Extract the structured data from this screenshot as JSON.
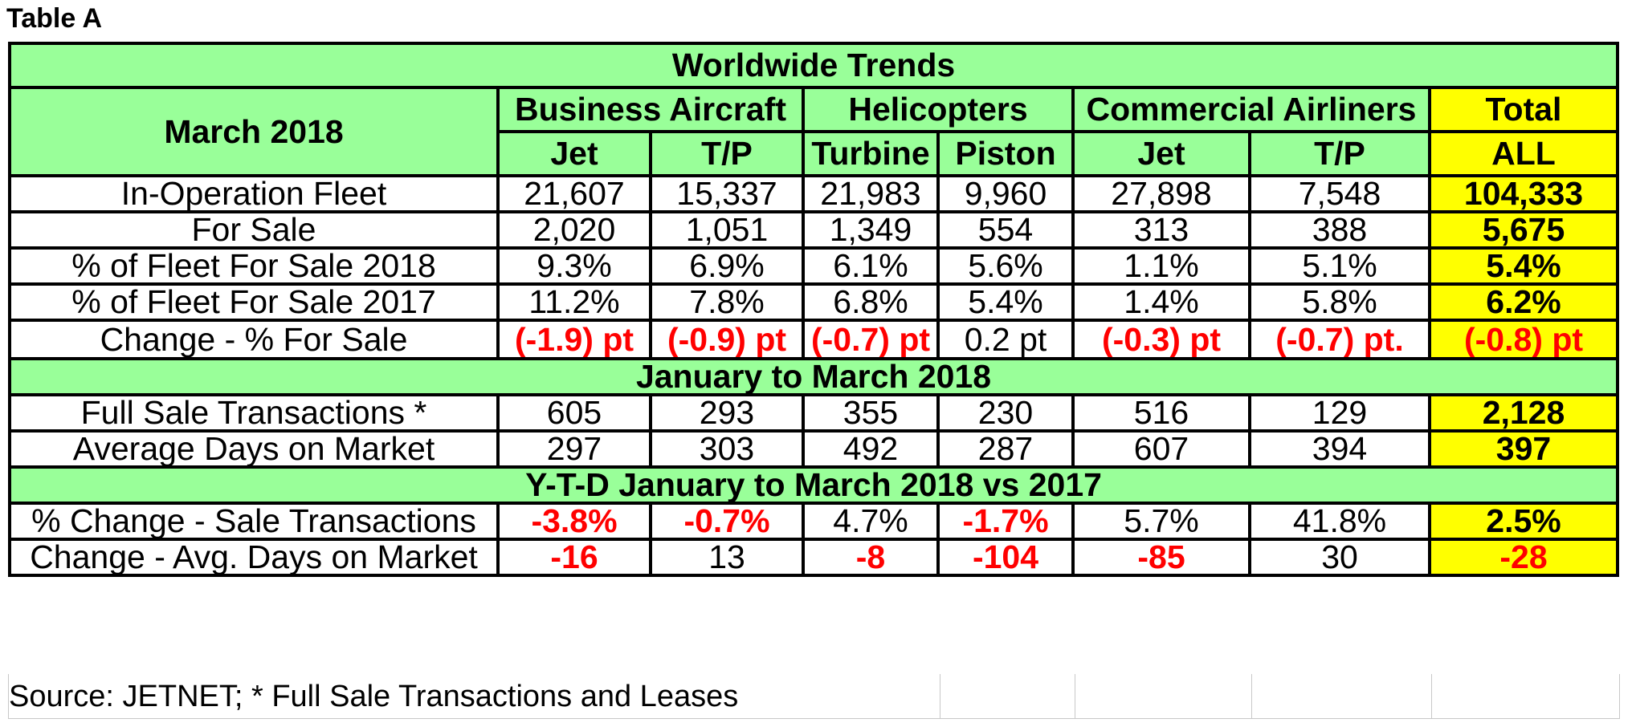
{
  "title": "Table A",
  "header": {
    "main": "Worldwide Trends",
    "period": "March 2018",
    "groups": [
      "Business Aircraft",
      "Helicopters",
      "Commercial Airliners",
      "Total"
    ],
    "subs": [
      "Jet",
      "T/P",
      "Turbine",
      "Piston",
      "Jet",
      "T/P",
      "ALL"
    ]
  },
  "sections": [
    {
      "rows": [
        {
          "label": "In-Operation Fleet",
          "values": [
            "21,607",
            "15,337",
            "21,983",
            "9,960",
            "27,898",
            "7,548"
          ],
          "total": "104,333"
        },
        {
          "label": "For Sale",
          "values": [
            "2,020",
            "1,051",
            "1,349",
            "554",
            "313",
            "388"
          ],
          "total": "5,675"
        },
        {
          "label": "% of Fleet For Sale 2018",
          "values": [
            "9.3%",
            "6.9%",
            "6.1%",
            "5.6%",
            "1.1%",
            "5.1%"
          ],
          "total": "5.4%"
        },
        {
          "label": "% of Fleet For Sale 2017",
          "values": [
            "11.2%",
            "7.8%",
            "6.8%",
            "5.4%",
            "1.4%",
            "5.8%"
          ],
          "total": "6.2%"
        },
        {
          "label": "Change - % For Sale",
          "values": [
            "(-1.9) pt",
            "(-0.9) pt",
            "(-0.7) pt",
            "0.2 pt",
            "(-0.3) pt",
            "(-0.7) pt."
          ],
          "total": "(-0.8) pt",
          "negative": [
            true,
            true,
            true,
            false,
            true,
            true
          ],
          "total_negative": true
        }
      ]
    },
    {
      "heading": "January to March 2018",
      "rows": [
        {
          "label": "Full Sale Transactions *",
          "values": [
            "605",
            "293",
            "355",
            "230",
            "516",
            "129"
          ],
          "total": "2,128"
        },
        {
          "label": "Average Days on Market",
          "values": [
            "297",
            "303",
            "492",
            "287",
            "607",
            "394"
          ],
          "total": "397"
        }
      ]
    },
    {
      "heading": "Y-T-D January to March 2018 vs 2017",
      "rows": [
        {
          "label": "% Change  - Sale Transactions",
          "values": [
            "-3.8%",
            "-0.7%",
            "4.7%",
            "-1.7%",
            "5.7%",
            "41.8%"
          ],
          "total": "2.5%",
          "negative": [
            true,
            true,
            false,
            true,
            false,
            false
          ],
          "total_negative": false
        },
        {
          "label": "Change -  Avg. Days on Market",
          "values": [
            "-16",
            "13",
            "-8",
            "-104",
            "-85",
            "30"
          ],
          "total": "-28",
          "negative": [
            true,
            false,
            true,
            true,
            true,
            false
          ],
          "total_negative": true
        }
      ]
    }
  ],
  "source": "Source: JETNET; * Full Sale Transactions and Leases",
  "colors": {
    "header_bg": "#99ff99",
    "total_bg": "#ffff00",
    "negative_text": "#ff0000"
  }
}
